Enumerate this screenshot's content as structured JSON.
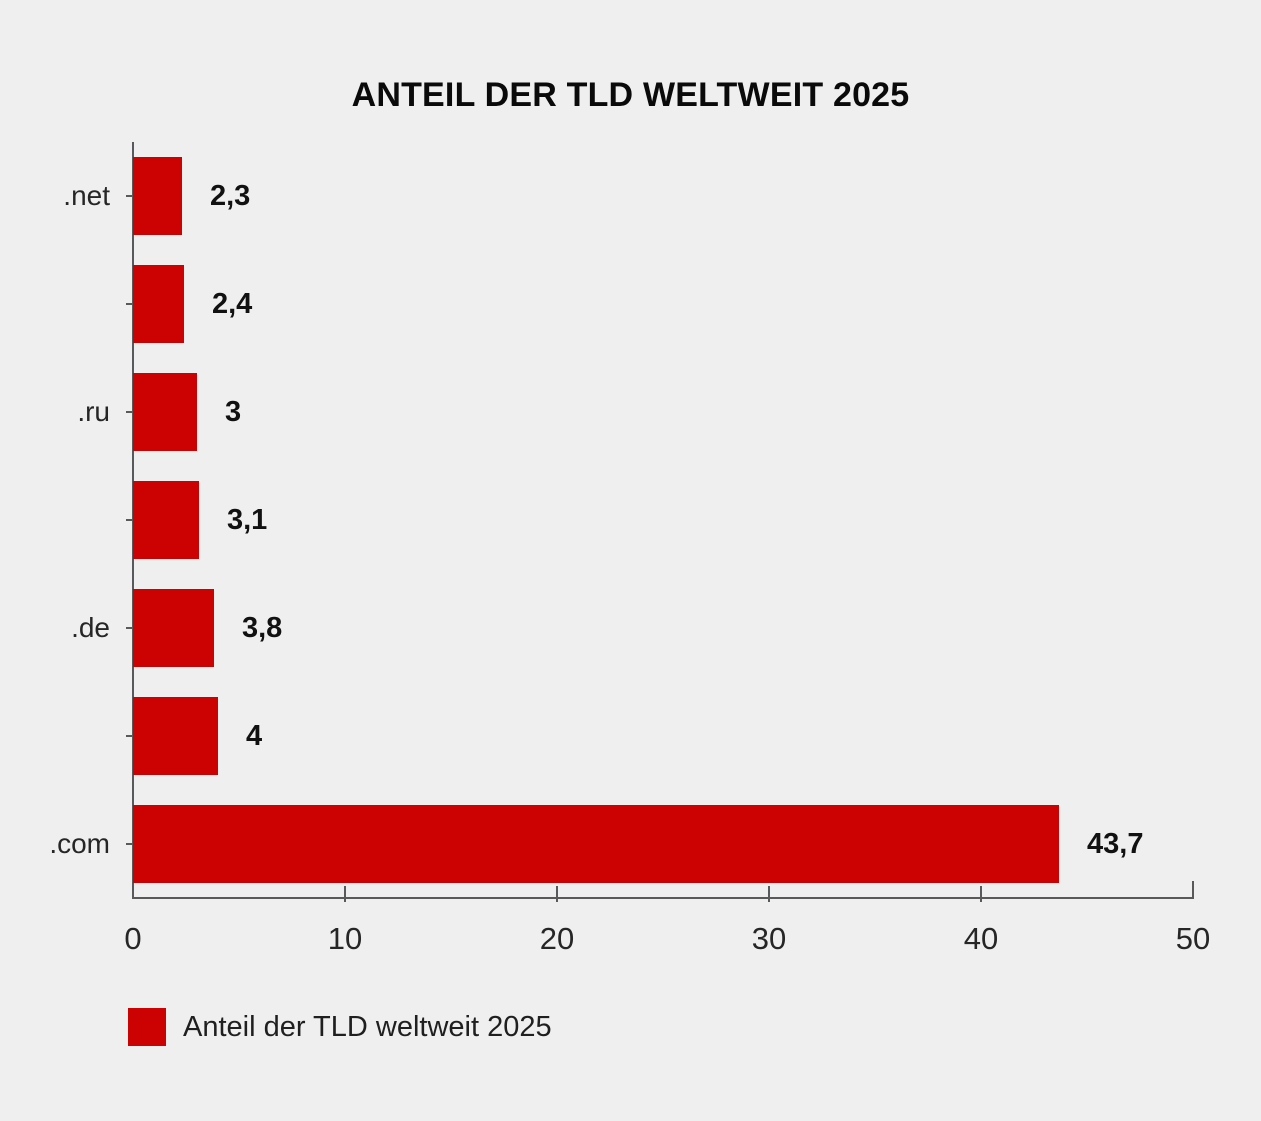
{
  "title": "ANTEIL DER TLD WELTWEIT 2025",
  "colors": {
    "background": "#efefef",
    "bar": "#cc0202",
    "axis": "#58595b",
    "text": "#111111"
  },
  "legend": {
    "label": "Anteil der TLD weltweit 2025",
    "swatch_color": "#cc0202"
  },
  "chart_data": {
    "type": "bar",
    "orientation": "horizontal",
    "title": "ANTEIL DER TLD WELTWEIT 2025",
    "categories": [
      ".net",
      "",
      ".ru",
      "",
      ".de",
      "",
      ".com"
    ],
    "values": [
      2.3,
      2.4,
      3,
      3.1,
      3.8,
      4,
      43.7
    ],
    "value_labels": [
      "2,3",
      "2,4",
      "3",
      "3,1",
      "3,8",
      "4",
      "43,7"
    ],
    "xlabel": "",
    "ylabel": "",
    "xlim": [
      0,
      50
    ],
    "x_ticks": [
      0,
      10,
      20,
      30,
      40,
      50
    ],
    "x_tick_labels": [
      "0",
      "10",
      "20",
      "30",
      "40",
      "50"
    ],
    "grid": false,
    "legend_entries": [
      "Anteil der TLD weltweit 2025"
    ],
    "legend_position": "bottom-left"
  }
}
